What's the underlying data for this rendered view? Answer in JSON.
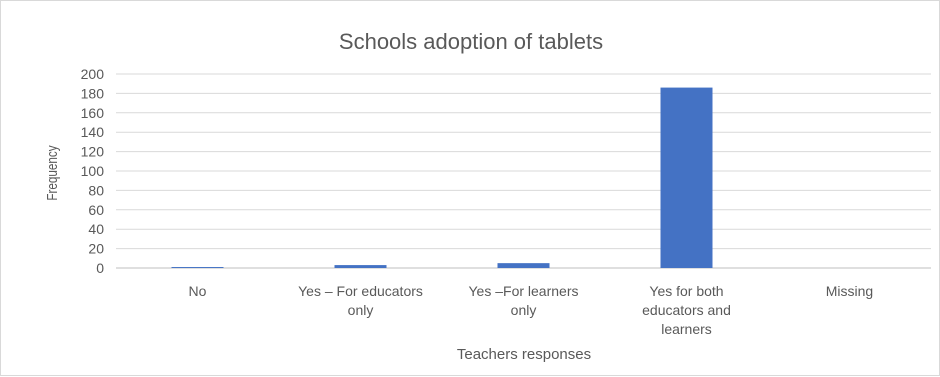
{
  "chart_data": {
    "type": "bar",
    "title": "Schools adoption of tablets",
    "xlabel": "Teachers responses",
    "ylabel": "Frequency",
    "categories": [
      [
        "No"
      ],
      [
        "Yes – For educators",
        "only"
      ],
      [
        "Yes –For learners",
        "only"
      ],
      [
        "Yes for both",
        "educators and",
        "learners"
      ],
      [
        "Missing"
      ]
    ],
    "values": [
      1,
      3,
      5,
      186,
      0
    ],
    "ylim": [
      0,
      200
    ],
    "yticks": [
      "0",
      "20",
      "40",
      "60",
      "80",
      "100",
      "120",
      "140",
      "160",
      "180",
      "200"
    ],
    "grid": true,
    "legend": "none",
    "bar_color": "#4472C4"
  }
}
